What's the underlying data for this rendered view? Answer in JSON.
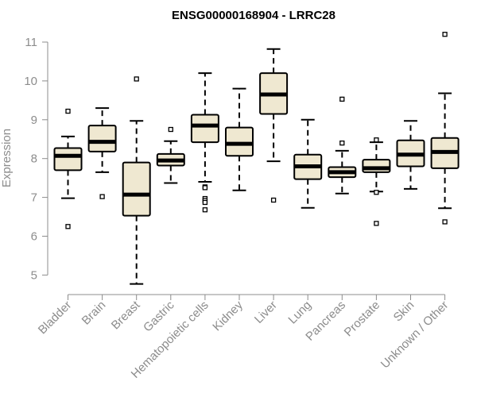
{
  "chart_data": {
    "type": "boxplot",
    "title": "ENSG00000168904 - LRRC28",
    "xlabel": "",
    "ylabel": "Expression",
    "ylim": [
      4.8,
      11.2
    ],
    "yticks": [
      5,
      6,
      7,
      8,
      9,
      10,
      11
    ],
    "grid": false,
    "box_fill": "#efe8d1",
    "categories": [
      "Bladder",
      "Brain",
      "Breast",
      "Gastric",
      "Hematopoietic cells",
      "Kidney",
      "Liver",
      "Lung",
      "Pancreas",
      "Prostate",
      "Skin",
      "Unknown / Other"
    ],
    "boxes": [
      {
        "whisker_low": 6.98,
        "q1": 7.7,
        "median": 8.07,
        "q3": 8.27,
        "whisker_high": 8.57,
        "outliers": [
          9.22,
          6.25
        ]
      },
      {
        "whisker_low": 7.65,
        "q1": 8.18,
        "median": 8.43,
        "q3": 8.85,
        "whisker_high": 9.3,
        "outliers": [
          7.02
        ]
      },
      {
        "whisker_low": 4.77,
        "q1": 6.53,
        "median": 7.07,
        "q3": 7.9,
        "whisker_high": 8.97,
        "outliers": [
          10.05
        ]
      },
      {
        "whisker_low": 7.37,
        "q1": 7.82,
        "median": 7.95,
        "q3": 8.12,
        "whisker_high": 8.45,
        "outliers": [
          8.75
        ]
      },
      {
        "whisker_low": 7.4,
        "q1": 8.42,
        "median": 8.85,
        "q3": 9.13,
        "whisker_high": 10.2,
        "outliers": [
          7.27,
          7.25,
          6.97,
          6.92,
          6.87,
          6.68
        ]
      },
      {
        "whisker_low": 7.18,
        "q1": 8.07,
        "median": 8.38,
        "q3": 8.8,
        "whisker_high": 9.8,
        "outliers": []
      },
      {
        "whisker_low": 7.93,
        "q1": 9.15,
        "median": 9.65,
        "q3": 10.2,
        "whisker_high": 10.82,
        "outliers": [
          6.93
        ]
      },
      {
        "whisker_low": 6.73,
        "q1": 7.47,
        "median": 7.8,
        "q3": 8.1,
        "whisker_high": 9.0,
        "outliers": []
      },
      {
        "whisker_low": 7.1,
        "q1": 7.52,
        "median": 7.65,
        "q3": 7.78,
        "whisker_high": 8.2,
        "outliers": [
          9.53,
          8.4
        ]
      },
      {
        "whisker_low": 7.15,
        "q1": 7.65,
        "median": 7.75,
        "q3": 7.97,
        "whisker_high": 8.42,
        "outliers": [
          8.48,
          7.13,
          6.33
        ]
      },
      {
        "whisker_low": 7.22,
        "q1": 7.8,
        "median": 8.1,
        "q3": 8.47,
        "whisker_high": 8.97,
        "outliers": []
      },
      {
        "whisker_low": 6.72,
        "q1": 7.75,
        "median": 8.17,
        "q3": 8.53,
        "whisker_high": 9.68,
        "outliers": [
          11.2,
          6.37
        ]
      }
    ]
  }
}
